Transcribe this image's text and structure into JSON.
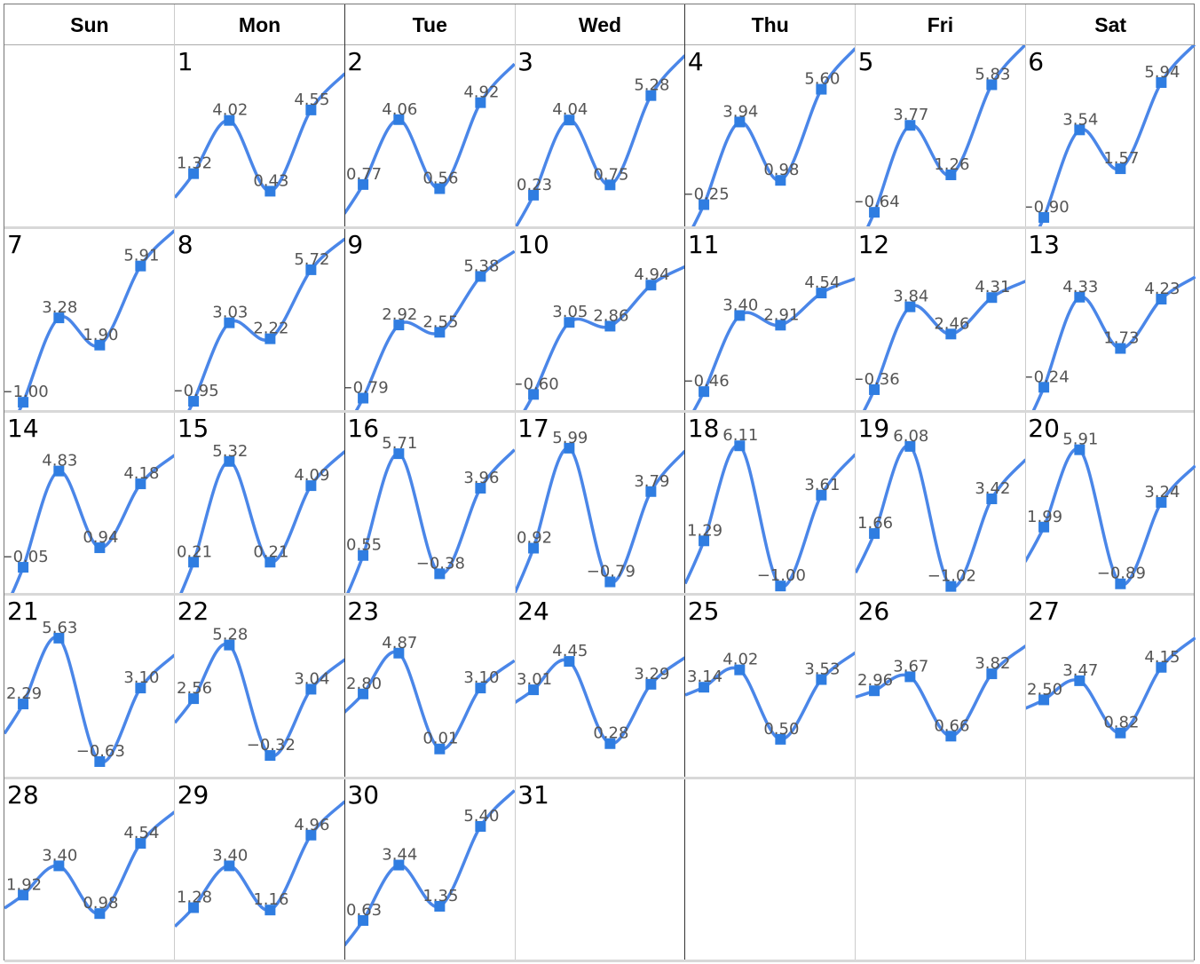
{
  "weekdays": [
    "Sun",
    "Mon",
    "Tue",
    "Wed",
    "Thu",
    "Fri",
    "Sat"
  ],
  "colors": {
    "line": "#4a86e8",
    "marker": "#2f7de1",
    "label": "#555555",
    "grid": "#cccccc"
  },
  "chart_data": {
    "type": "line",
    "layout": "calendar-month-small-multiples",
    "first_weekday_index": 1,
    "points_per_day": 4,
    "ylim": [
      -1.1,
      6.3
    ],
    "days": [
      {
        "day": "1",
        "values": [
          1.32,
          4.02,
          0.43,
          4.55
        ]
      },
      {
        "day": "2",
        "values": [
          0.77,
          4.06,
          0.56,
          4.92
        ]
      },
      {
        "day": "3",
        "values": [
          0.23,
          4.04,
          0.75,
          5.28
        ]
      },
      {
        "day": "4",
        "values": [
          -0.25,
          3.94,
          0.98,
          5.6
        ]
      },
      {
        "day": "5",
        "values": [
          -0.64,
          3.77,
          1.26,
          5.83
        ]
      },
      {
        "day": "6",
        "values": [
          -0.9,
          3.54,
          1.57,
          5.94
        ]
      },
      {
        "day": "7",
        "values": [
          -1.0,
          3.28,
          1.9,
          5.91
        ]
      },
      {
        "day": "8",
        "values": [
          -0.95,
          3.03,
          2.22,
          5.72
        ]
      },
      {
        "day": "9",
        "values": [
          -0.79,
          2.92,
          2.55,
          5.38
        ]
      },
      {
        "day": "10",
        "values": [
          -0.6,
          3.05,
          2.86,
          4.94
        ]
      },
      {
        "day": "11",
        "values": [
          -0.46,
          3.4,
          2.91,
          4.54
        ]
      },
      {
        "day": "12",
        "values": [
          -0.36,
          3.84,
          2.46,
          4.31
        ]
      },
      {
        "day": "13",
        "values": [
          -0.24,
          4.33,
          1.73,
          4.23
        ]
      },
      {
        "day": "14",
        "values": [
          -0.05,
          4.83,
          0.94,
          4.18
        ]
      },
      {
        "day": "15",
        "values": [
          0.21,
          5.32,
          0.21,
          4.09
        ]
      },
      {
        "day": "16",
        "values": [
          0.55,
          5.71,
          -0.38,
          3.96
        ]
      },
      {
        "day": "17",
        "values": [
          0.92,
          5.99,
          -0.79,
          3.79
        ]
      },
      {
        "day": "18",
        "values": [
          1.29,
          6.11,
          -1.0,
          3.61
        ]
      },
      {
        "day": "19",
        "values": [
          1.66,
          6.08,
          -1.02,
          3.42
        ]
      },
      {
        "day": "20",
        "values": [
          1.99,
          5.91,
          -0.89,
          3.24
        ]
      },
      {
        "day": "21",
        "values": [
          2.29,
          5.63,
          -0.63,
          3.1
        ]
      },
      {
        "day": "22",
        "values": [
          2.56,
          5.28,
          -0.32,
          3.04
        ]
      },
      {
        "day": "23",
        "values": [
          2.8,
          4.87,
          0.01,
          3.1
        ]
      },
      {
        "day": "24",
        "values": [
          3.01,
          4.45,
          0.28,
          3.29
        ]
      },
      {
        "day": "25",
        "values": [
          3.14,
          4.02,
          0.5,
          3.53
        ]
      },
      {
        "day": "26",
        "values": [
          2.96,
          3.67,
          0.66,
          3.82
        ]
      },
      {
        "day": "27",
        "values": [
          2.5,
          3.47,
          0.82,
          4.15
        ]
      },
      {
        "day": "28",
        "values": [
          1.92,
          3.4,
          0.98,
          4.54
        ]
      },
      {
        "day": "29",
        "values": [
          1.28,
          3.4,
          1.16,
          4.96
        ]
      },
      {
        "day": "30",
        "values": [
          0.63,
          3.44,
          1.35,
          5.4
        ]
      },
      {
        "day": "31",
        "values": []
      }
    ]
  }
}
